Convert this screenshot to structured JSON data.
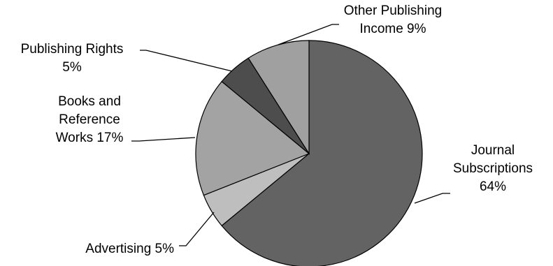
{
  "chart_data": {
    "type": "pie",
    "title": "",
    "start_angle_deg": 0,
    "direction": "clockwise",
    "slices": [
      {
        "name": "Journal Subscriptions",
        "value": 64,
        "label_lines": [
          "Journal",
          "Subscriptions",
          "64%"
        ],
        "color": "#636363"
      },
      {
        "name": "Advertising",
        "value": 5,
        "label_lines": [
          "Advertising 5%"
        ],
        "color": "#bebebe"
      },
      {
        "name": "Books and Reference Works",
        "value": 17,
        "label_lines": [
          "Books and",
          "Reference",
          "Works 17%"
        ],
        "color": "#a3a3a3"
      },
      {
        "name": "Publishing Rights",
        "value": 5,
        "label_lines": [
          "Publishing Rights",
          "5%"
        ],
        "color": "#4d4d4d"
      },
      {
        "name": "Other Publishing Income",
        "value": 9,
        "label_lines": [
          "Other Publishing",
          "Income 9%"
        ],
        "color": "#a0a0a0"
      }
    ]
  }
}
